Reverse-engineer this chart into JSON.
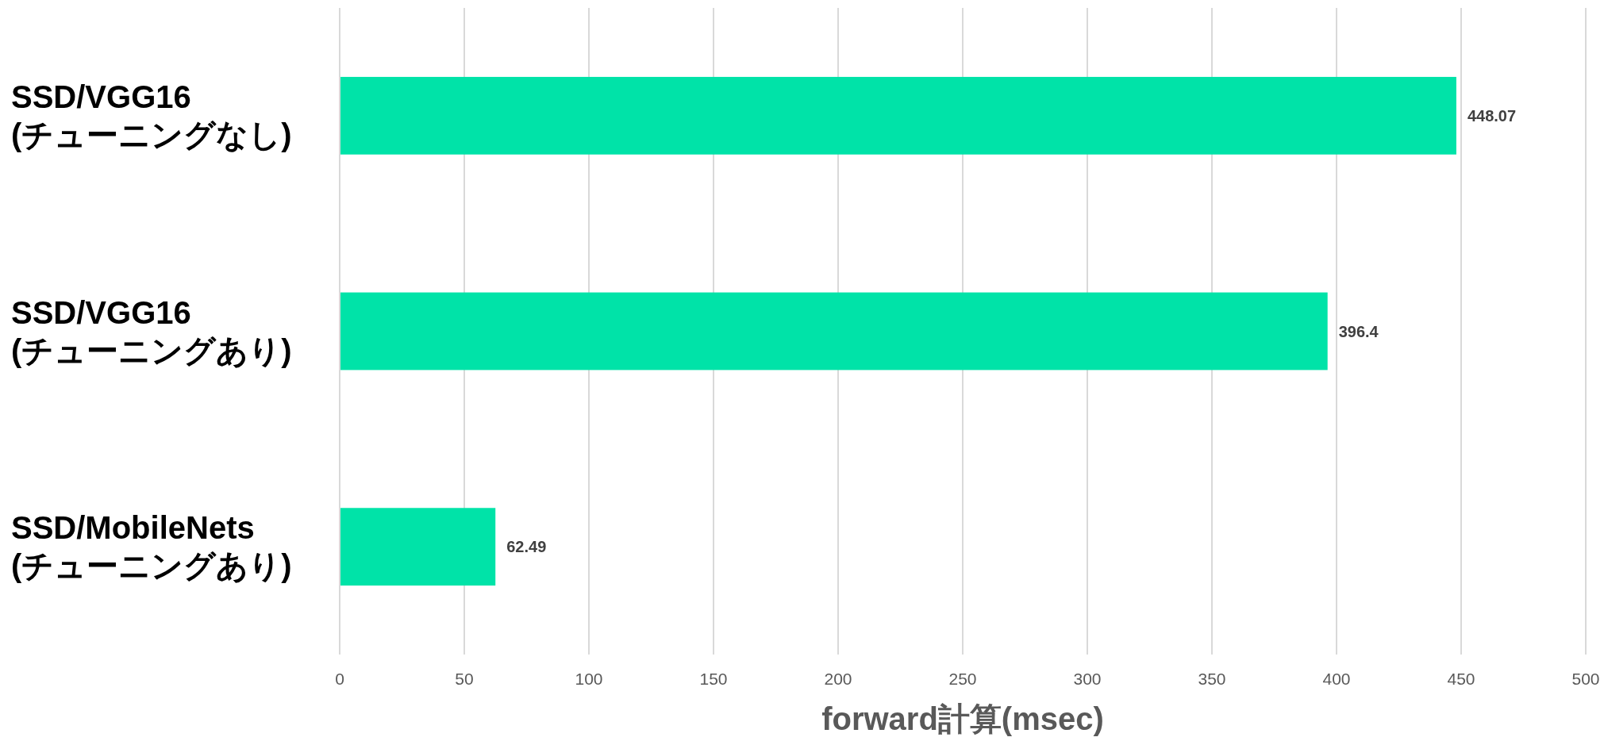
{
  "chart_data": {
    "type": "bar",
    "orientation": "horizontal",
    "xlabel": "forward計算(msec)",
    "categories": [
      "SSD/VGG16\n(チューニングなし)",
      "SSD/VGG16\n(チューニングあり)",
      "SSD/MobileNets\n(チューニングあり)"
    ],
    "values": [
      448.07,
      396.4,
      62.49
    ],
    "color": "#00e3a8",
    "xlim": [
      0,
      500
    ],
    "xticks": [
      0,
      50,
      100,
      150,
      200,
      250,
      300,
      350,
      400,
      450,
      500
    ],
    "grid": "x",
    "data_labels": true
  }
}
